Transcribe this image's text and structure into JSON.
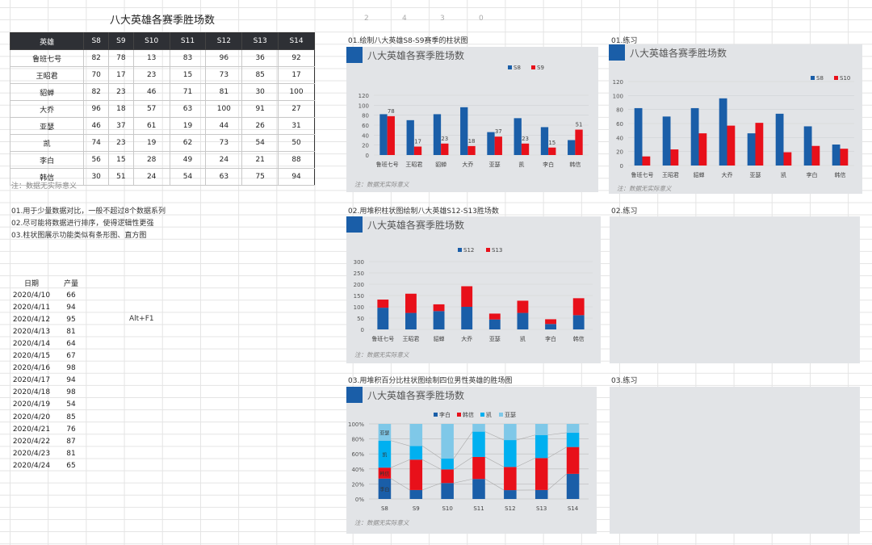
{
  "title": "八大英雄各赛季胜场数",
  "table": {
    "headers": [
      "英雄",
      "S8",
      "S9",
      "S10",
      "S11",
      "S12",
      "S13",
      "S14"
    ],
    "rows": [
      [
        "鲁班七号",
        "82",
        "78",
        "13",
        "83",
        "96",
        "36",
        "92"
      ],
      [
        "王昭君",
        "70",
        "17",
        "23",
        "15",
        "73",
        "85",
        "17"
      ],
      [
        "貂蝉",
        "82",
        "23",
        "46",
        "71",
        "81",
        "30",
        "100"
      ],
      [
        "大乔",
        "96",
        "18",
        "57",
        "63",
        "100",
        "91",
        "27"
      ],
      [
        "亚瑟",
        "46",
        "37",
        "61",
        "19",
        "44",
        "26",
        "31"
      ],
      [
        "凯",
        "74",
        "23",
        "19",
        "62",
        "73",
        "54",
        "50"
      ],
      [
        "李白",
        "56",
        "15",
        "28",
        "49",
        "24",
        "21",
        "88"
      ],
      [
        "韩信",
        "30",
        "51",
        "24",
        "54",
        "63",
        "75",
        "94"
      ]
    ]
  },
  "note": "注：数据无实际意义",
  "tips": [
    "01.用于少量数据对比，一般不超过8个数据系列",
    "02.尽可能将数据进行排序，使得逻辑性更强",
    "03.柱状图展示功能类似有条形图、直方图"
  ],
  "production": {
    "headers": [
      "日期",
      "产量"
    ],
    "rows": [
      [
        "2020/4/10",
        "66"
      ],
      [
        "2020/4/11",
        "94"
      ],
      [
        "2020/4/12",
        "95"
      ],
      [
        "2020/4/13",
        "81"
      ],
      [
        "2020/4/14",
        "64"
      ],
      [
        "2020/4/15",
        "67"
      ],
      [
        "2020/4/16",
        "98"
      ],
      [
        "2020/4/17",
        "94"
      ],
      [
        "2020/4/18",
        "98"
      ],
      [
        "2020/4/19",
        "54"
      ],
      [
        "2020/4/20",
        "85"
      ],
      [
        "2020/4/21",
        "76"
      ],
      [
        "2020/4/22",
        "87"
      ],
      [
        "2020/4/23",
        "81"
      ],
      [
        "2020/4/24",
        "65"
      ]
    ]
  },
  "shortcut": "Alt+F1",
  "header_nums": [
    "2",
    "4",
    "3",
    "0"
  ],
  "sections": {
    "s1": "01.绘制八大英雄S8-S9赛季的柱状图",
    "p1": "01.练习",
    "s2": "02.用堆积柱状图绘制八大英雄S12-S13胜场数",
    "p2": "02.练习",
    "s3": "03.用堆积百分比柱状图绘制四位男性英雄的胜场图",
    "p3": "03.练习"
  },
  "chart_note": "注：数据无实际意义",
  "colors": {
    "blue": "#1a5ea8",
    "red": "#e8101a",
    "cyan": "#00b0f0",
    "lightblue": "#7fc8e8"
  },
  "chart_data": [
    {
      "type": "bar",
      "title": "八大英雄各赛季胜场数",
      "categories": [
        "鲁班七号",
        "王昭君",
        "貂蝉",
        "大乔",
        "亚瑟",
        "凯",
        "李白",
        "韩信"
      ],
      "series": [
        {
          "name": "S8",
          "values": [
            82,
            70,
            82,
            96,
            46,
            74,
            56,
            30
          ]
        },
        {
          "name": "S9",
          "values": [
            78,
            17,
            23,
            18,
            37,
            23,
            15,
            51
          ]
        }
      ],
      "data_labels": [
        "78",
        "17",
        "23",
        "18",
        "37",
        "23",
        "15",
        "51"
      ],
      "yticks": [
        "0",
        "20",
        "40",
        "60",
        "80",
        "100",
        "120"
      ],
      "ylim": [
        0,
        120
      ],
      "legend": "top"
    },
    {
      "type": "bar",
      "title": "八大英雄各赛季胜场数",
      "categories": [
        "鲁班七号",
        "王昭君",
        "貂蝉",
        "大乔",
        "亚瑟",
        "凯",
        "李白",
        "韩信"
      ],
      "series": [
        {
          "name": "S8",
          "values": [
            82,
            70,
            82,
            96,
            46,
            74,
            56,
            30
          ]
        },
        {
          "name": "S10",
          "values": [
            13,
            23,
            46,
            57,
            61,
            19,
            28,
            24
          ]
        }
      ],
      "yticks": [
        "0",
        "20",
        "40",
        "60",
        "80",
        "100",
        "120"
      ],
      "ylim": [
        0,
        120
      ],
      "legend": "top-right"
    },
    {
      "type": "bar",
      "stacked": true,
      "title": "八大英雄各赛季胜场数",
      "categories": [
        "鲁班七号",
        "王昭君",
        "貂蝉",
        "大乔",
        "亚瑟",
        "凯",
        "李白",
        "韩信"
      ],
      "series": [
        {
          "name": "S12",
          "values": [
            96,
            73,
            81,
            100,
            44,
            73,
            24,
            63
          ]
        },
        {
          "name": "S13",
          "values": [
            36,
            85,
            30,
            91,
            26,
            54,
            21,
            75
          ]
        }
      ],
      "yticks": [
        "0",
        "50",
        "100",
        "150",
        "200",
        "250",
        "300"
      ],
      "ylim": [
        0,
        300
      ],
      "legend": "top"
    },
    {
      "type": "bar",
      "stacked": "percent",
      "title": "八大英雄各赛季胜场数",
      "categories": [
        "S8",
        "S9",
        "S10",
        "S11",
        "S12",
        "S13",
        "S14"
      ],
      "series": [
        {
          "name": "李白",
          "values": [
            56,
            15,
            28,
            49,
            24,
            21,
            88
          ]
        },
        {
          "name": "韩信",
          "values": [
            30,
            51,
            24,
            54,
            63,
            75,
            94
          ]
        },
        {
          "name": "凯",
          "values": [
            74,
            23,
            19,
            62,
            73,
            54,
            50
          ]
        },
        {
          "name": "亚瑟",
          "values": [
            46,
            37,
            61,
            19,
            44,
            26,
            31
          ]
        }
      ],
      "inner_labels": [
        "亚瑟",
        "凯",
        "韩信",
        "李白"
      ],
      "yticks": [
        "0%",
        "20%",
        "40%",
        "60%",
        "80%",
        "100%"
      ],
      "ylim": [
        0,
        100
      ],
      "legend": "top"
    }
  ]
}
